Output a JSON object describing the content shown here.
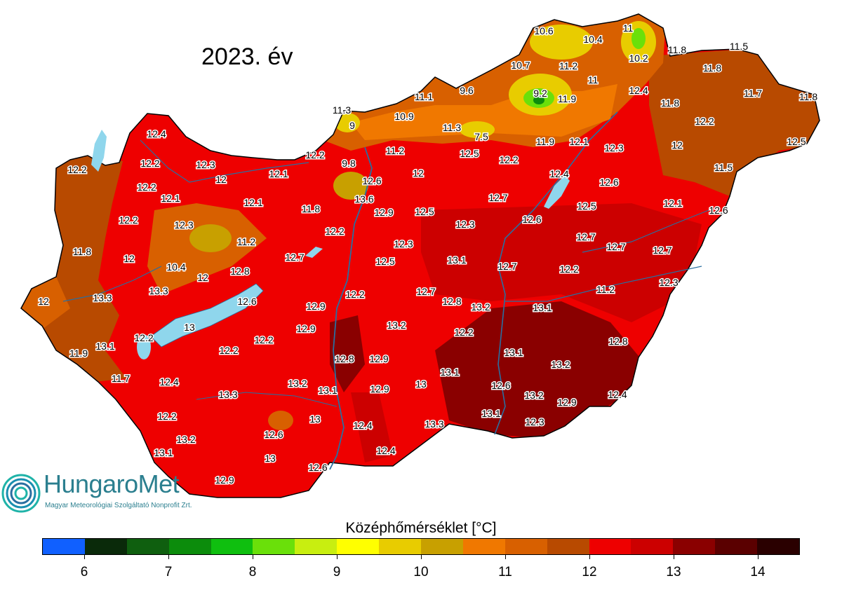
{
  "title": "2023. év",
  "legend": {
    "title": "Középhőmérséklet [°C]",
    "colors": [
      "#1060ff",
      "#0a2a0a",
      "#0f5f0f",
      "#0c8c0c",
      "#0fbf0f",
      "#6ae00a",
      "#c8ee10",
      "#ffff00",
      "#e8cc00",
      "#c8a000",
      "#f07800",
      "#d86000",
      "#b84a00",
      "#ee0000",
      "#cc0000",
      "#8a0000",
      "#5a0000",
      "#2a0000"
    ],
    "ticks": [
      "6",
      "7",
      "8",
      "9",
      "10",
      "11",
      "12",
      "13",
      "14"
    ],
    "min": 5.5,
    "max": 14.5
  },
  "logo": {
    "name": "HungaroMet",
    "subtitle": "Magyar Meteorológiai Szolgáltató Nonprofit Zrt."
  },
  "station_values": [
    "10.6",
    "10.4",
    "11",
    "11.8",
    "11.5",
    "10.7",
    "11.2",
    "10.2",
    "11.8",
    "9.6",
    "9.2",
    "11.9",
    "11",
    "12.4",
    "11.1",
    "11.7",
    "11.8",
    "11.3",
    "10.9",
    "9",
    "11.8",
    "11.3",
    "7.5",
    "12.2",
    "12.4",
    "12.2",
    "12.2",
    "11.9",
    "12.1",
    "12.3",
    "12.5",
    "11.2",
    "12.5",
    "12.2",
    "12.3",
    "9.8",
    "12",
    "12",
    "12.2",
    "12.1",
    "12.4",
    "11.5",
    "12.2",
    "12",
    "12.6",
    "12.6",
    "12.1",
    "12.1",
    "13.6",
    "12.7",
    "12.5",
    "12.6",
    "12.2",
    "11.8",
    "12.9",
    "12.5",
    "12.3",
    "12.3",
    "12.1",
    "12.6",
    "12.2",
    "12.7",
    "11.8",
    "11.2",
    "12.3",
    "12.7",
    "12.7",
    "12",
    "12.7",
    "12.5",
    "13.1",
    "12.7",
    "12.2",
    "10.4",
    "12",
    "12.8",
    "12.3",
    "13.3",
    "12.2",
    "12.7",
    "11.2",
    "12",
    "13.3",
    "12.6",
    "12.9",
    "12.8",
    "13.2",
    "13.1",
    "13",
    "13.2",
    "12.9",
    "12.2",
    "12.8",
    "12.2",
    "12.2",
    "12.2",
    "13.1",
    "11.9",
    "12.8",
    "12.9",
    "13.1",
    "11.7",
    "12.4",
    "13.2",
    "13.2",
    "13.1",
    "13.1",
    "12.6",
    "12.9",
    "13",
    "13.3",
    "13.2",
    "12.9",
    "12.4",
    "12.2",
    "13",
    "13.3",
    "13.1",
    "12.3",
    "12.6",
    "12.4",
    "13.2",
    "12.4",
    "13.1",
    "13",
    "12.6",
    "12.9"
  ]
}
